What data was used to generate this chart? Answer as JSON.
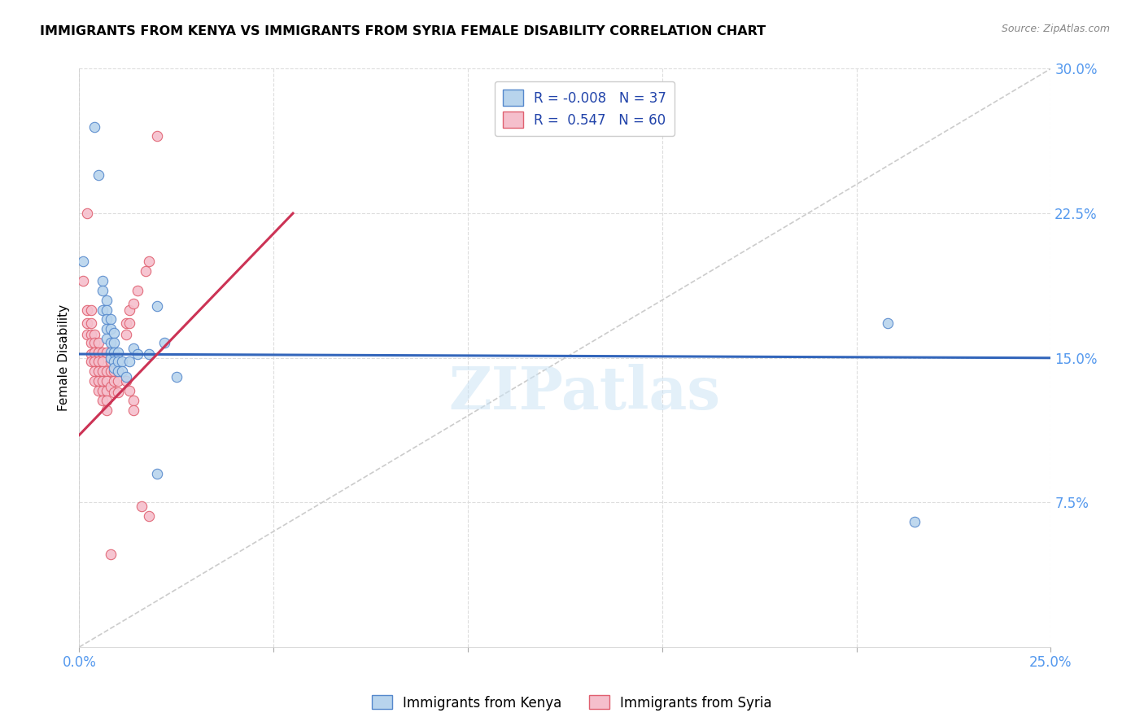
{
  "title": "IMMIGRANTS FROM KENYA VS IMMIGRANTS FROM SYRIA FEMALE DISABILITY CORRELATION CHART",
  "source": "Source: ZipAtlas.com",
  "ylabel": "Female Disability",
  "xlim": [
    0.0,
    0.25
  ],
  "ylim": [
    0.0,
    0.3
  ],
  "xticks": [
    0.0,
    0.05,
    0.1,
    0.15,
    0.2,
    0.25
  ],
  "yticks": [
    0.0,
    0.075,
    0.15,
    0.225,
    0.3
  ],
  "xticklabels": [
    "0.0%",
    "",
    "",
    "",
    "",
    "25.0%"
  ],
  "yticklabels_right": [
    "",
    "7.5%",
    "15.0%",
    "22.5%",
    "30.0%"
  ],
  "kenya_fill_color": "#b8d4ed",
  "syria_fill_color": "#f5bfcc",
  "kenya_edge_color": "#5588cc",
  "syria_edge_color": "#e06070",
  "kenya_line_color": "#3366bb",
  "syria_line_color": "#cc3355",
  "diagonal_color": "#cccccc",
  "R_kenya": -0.008,
  "N_kenya": 37,
  "R_syria": 0.547,
  "N_syria": 60,
  "watermark": "ZIPatlas",
  "kenya_line": [
    [
      0.0,
      0.152
    ],
    [
      0.25,
      0.15
    ]
  ],
  "syria_line": [
    [
      0.0,
      0.11
    ],
    [
      0.055,
      0.225
    ]
  ],
  "kenya_points": [
    [
      0.001,
      0.2
    ],
    [
      0.004,
      0.27
    ],
    [
      0.005,
      0.245
    ],
    [
      0.006,
      0.19
    ],
    [
      0.006,
      0.185
    ],
    [
      0.006,
      0.175
    ],
    [
      0.007,
      0.18
    ],
    [
      0.007,
      0.175
    ],
    [
      0.007,
      0.17
    ],
    [
      0.007,
      0.165
    ],
    [
      0.007,
      0.16
    ],
    [
      0.008,
      0.17
    ],
    [
      0.008,
      0.165
    ],
    [
      0.008,
      0.158
    ],
    [
      0.008,
      0.153
    ],
    [
      0.008,
      0.15
    ],
    [
      0.009,
      0.163
    ],
    [
      0.009,
      0.158
    ],
    [
      0.009,
      0.153
    ],
    [
      0.009,
      0.148
    ],
    [
      0.009,
      0.145
    ],
    [
      0.01,
      0.153
    ],
    [
      0.01,
      0.148
    ],
    [
      0.01,
      0.143
    ],
    [
      0.011,
      0.148
    ],
    [
      0.011,
      0.143
    ],
    [
      0.012,
      0.14
    ],
    [
      0.013,
      0.148
    ],
    [
      0.014,
      0.155
    ],
    [
      0.015,
      0.152
    ],
    [
      0.018,
      0.152
    ],
    [
      0.02,
      0.177
    ],
    [
      0.02,
      0.09
    ],
    [
      0.022,
      0.158
    ],
    [
      0.025,
      0.14
    ],
    [
      0.208,
      0.168
    ],
    [
      0.215,
      0.065
    ]
  ],
  "syria_points": [
    [
      0.001,
      0.19
    ],
    [
      0.002,
      0.225
    ],
    [
      0.002,
      0.175
    ],
    [
      0.002,
      0.168
    ],
    [
      0.002,
      0.162
    ],
    [
      0.003,
      0.175
    ],
    [
      0.003,
      0.168
    ],
    [
      0.003,
      0.162
    ],
    [
      0.003,
      0.158
    ],
    [
      0.003,
      0.152
    ],
    [
      0.003,
      0.148
    ],
    [
      0.004,
      0.162
    ],
    [
      0.004,
      0.158
    ],
    [
      0.004,
      0.153
    ],
    [
      0.004,
      0.148
    ],
    [
      0.004,
      0.143
    ],
    [
      0.004,
      0.138
    ],
    [
      0.005,
      0.158
    ],
    [
      0.005,
      0.153
    ],
    [
      0.005,
      0.148
    ],
    [
      0.005,
      0.143
    ],
    [
      0.005,
      0.138
    ],
    [
      0.005,
      0.133
    ],
    [
      0.006,
      0.153
    ],
    [
      0.006,
      0.148
    ],
    [
      0.006,
      0.143
    ],
    [
      0.006,
      0.138
    ],
    [
      0.006,
      0.133
    ],
    [
      0.006,
      0.128
    ],
    [
      0.007,
      0.153
    ],
    [
      0.007,
      0.143
    ],
    [
      0.007,
      0.138
    ],
    [
      0.007,
      0.133
    ],
    [
      0.007,
      0.128
    ],
    [
      0.007,
      0.123
    ],
    [
      0.008,
      0.148
    ],
    [
      0.008,
      0.143
    ],
    [
      0.008,
      0.135
    ],
    [
      0.009,
      0.143
    ],
    [
      0.009,
      0.138
    ],
    [
      0.009,
      0.132
    ],
    [
      0.01,
      0.143
    ],
    [
      0.01,
      0.138
    ],
    [
      0.01,
      0.132
    ],
    [
      0.012,
      0.168
    ],
    [
      0.012,
      0.162
    ],
    [
      0.013,
      0.175
    ],
    [
      0.013,
      0.168
    ],
    [
      0.014,
      0.178
    ],
    [
      0.015,
      0.185
    ],
    [
      0.017,
      0.195
    ],
    [
      0.018,
      0.2
    ],
    [
      0.02,
      0.265
    ],
    [
      0.012,
      0.138
    ],
    [
      0.013,
      0.133
    ],
    [
      0.014,
      0.128
    ],
    [
      0.014,
      0.123
    ],
    [
      0.016,
      0.073
    ],
    [
      0.018,
      0.068
    ],
    [
      0.008,
      0.048
    ]
  ]
}
